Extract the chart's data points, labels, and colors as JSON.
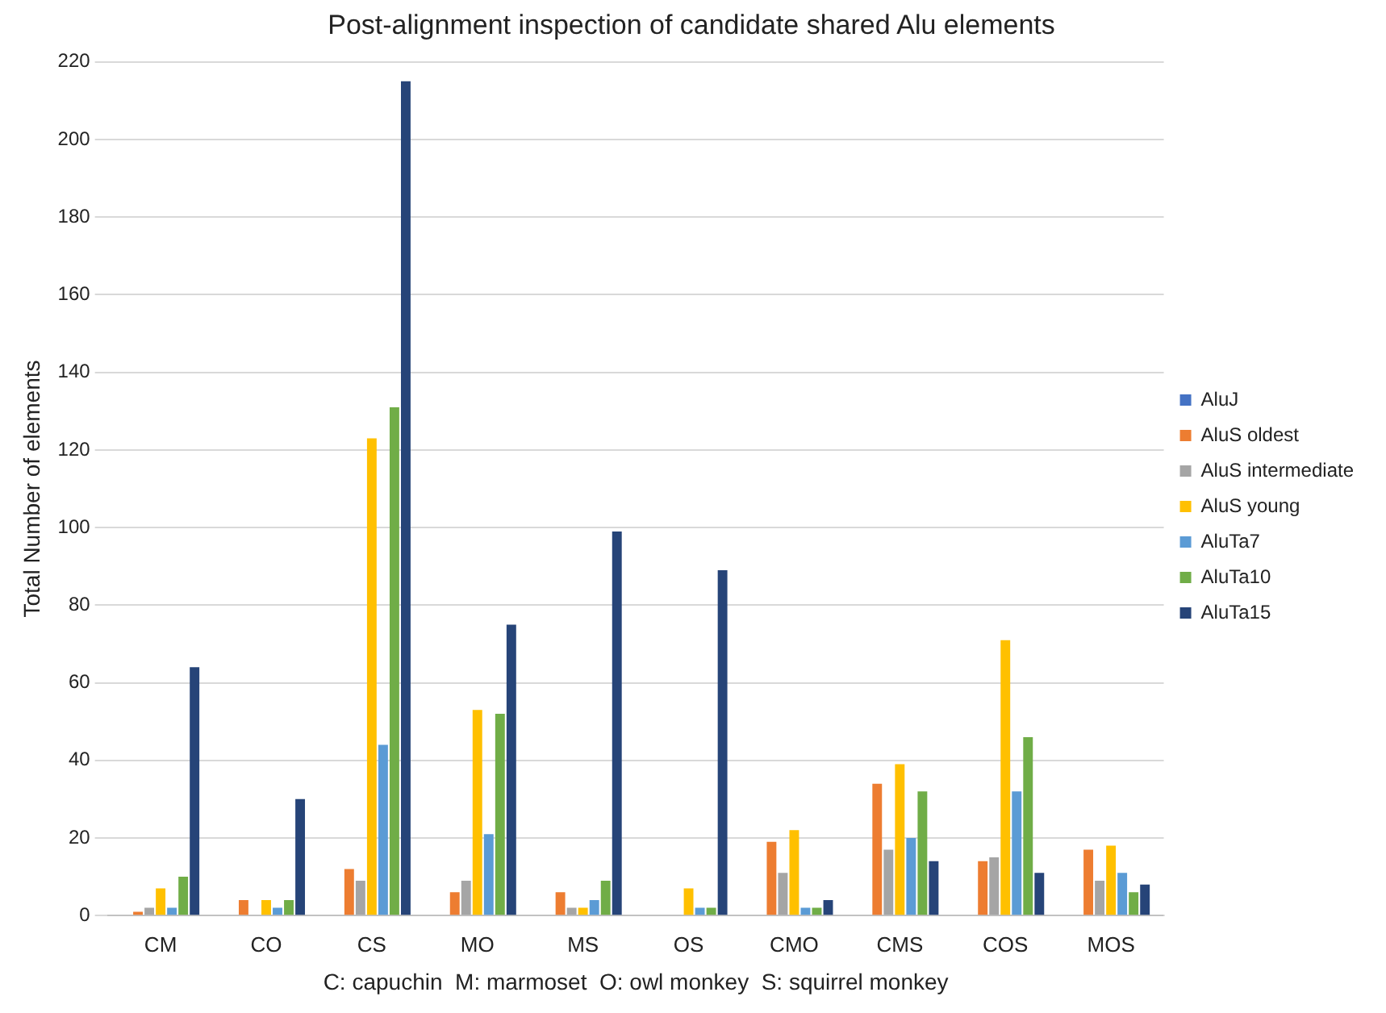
{
  "chart_data": {
    "type": "bar",
    "title": "Post-alignment inspection of candidate shared Alu elements",
    "xlabel": "C: capuchin  M: marmoset  O: owl monkey  S: squirrel monkey",
    "ylabel": "Total Number of elements",
    "categories": [
      "CM",
      "CO",
      "CS",
      "MO",
      "MS",
      "OS",
      "CMO",
      "CMS",
      "COS",
      "MOS"
    ],
    "series": [
      {
        "name": "AluJ",
        "color": "#4472c4",
        "values": [
          0,
          0,
          0,
          0,
          0,
          0,
          0,
          0,
          0,
          0
        ]
      },
      {
        "name": "AluS oldest",
        "color": "#ed7d31",
        "values": [
          1,
          4,
          12,
          6,
          6,
          0,
          19,
          34,
          14,
          17
        ]
      },
      {
        "name": "AluS intermediate",
        "color": "#a5a5a5",
        "values": [
          2,
          0,
          9,
          9,
          2,
          0,
          11,
          17,
          15,
          9
        ]
      },
      {
        "name": "AluS young",
        "color": "#ffc000",
        "values": [
          7,
          4,
          123,
          53,
          2,
          7,
          22,
          39,
          71,
          18
        ]
      },
      {
        "name": "AluTa7",
        "color": "#5b9bd5",
        "values": [
          2,
          2,
          44,
          21,
          4,
          2,
          2,
          20,
          32,
          11
        ]
      },
      {
        "name": "AluTa10",
        "color": "#70ad47",
        "values": [
          10,
          4,
          131,
          52,
          9,
          2,
          2,
          32,
          46,
          6
        ]
      },
      {
        "name": "AluTa15",
        "color": "#264478",
        "values": [
          64,
          30,
          215,
          75,
          99,
          89,
          4,
          14,
          11,
          8
        ]
      }
    ],
    "ylim": [
      0,
      220
    ],
    "yticks": [
      0,
      20,
      40,
      60,
      80,
      100,
      120,
      140,
      160,
      180,
      200,
      220
    ],
    "grid": "y",
    "legend": "right"
  }
}
